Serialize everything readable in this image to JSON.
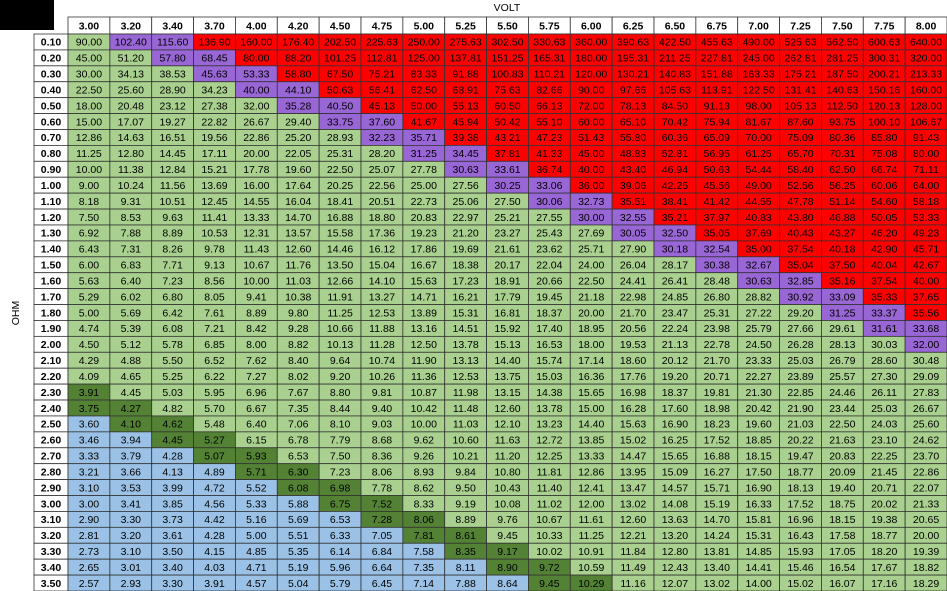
{
  "title": "VOLT",
  "row_title": "OHM",
  "columns": [
    "3.00",
    "3.20",
    "3.40",
    "3.70",
    "4.00",
    "4.20",
    "4.50",
    "4.75",
    "5.00",
    "5.25",
    "5.50",
    "5.75",
    "6.00",
    "6.25",
    "6.50",
    "6.75",
    "7.00",
    "7.25",
    "7.50",
    "7.75",
    "8.00"
  ],
  "palette": {
    "G": "#a9d08e",
    "P": "#9966d6",
    "R": "#ff0000",
    "D": "#548235",
    "B": "#9bc2e6"
  },
  "rows": [
    {
      "label": "0.10",
      "fill": "GPPRRRRRRRRRRRRRRRRRR",
      "cells": [
        "90.00",
        "102.40",
        "115.60",
        "136.90",
        "160.00",
        "176.40",
        "202.50",
        "225.63",
        "250.00",
        "275.63",
        "302.50",
        "330.63",
        "360.00",
        "390.63",
        "422.50",
        "455.63",
        "490.00",
        "525.63",
        "562.50",
        "600.63",
        "640.00"
      ]
    },
    {
      "label": "0.20",
      "fill": "GGPPRRRRRRRRRRRRRRRRR",
      "cells": [
        "45.00",
        "51.20",
        "57.80",
        "68.45",
        "80.00",
        "88.20",
        "101.25",
        "112.81",
        "125.00",
        "137.81",
        "151.25",
        "165.31",
        "180.00",
        "195.31",
        "211.25",
        "227.81",
        "245.00",
        "262.81",
        "281.25",
        "300.31",
        "320.00"
      ]
    },
    {
      "label": "0.30",
      "fill": "GGGPPRRRRRRRRRRRRRRRR",
      "cells": [
        "30.00",
        "34.13",
        "38.53",
        "45.63",
        "53.33",
        "58.80",
        "67.50",
        "75.21",
        "83.33",
        "91.88",
        "100.83",
        "110.21",
        "120.00",
        "130.21",
        "140.83",
        "151.88",
        "163.33",
        "175.21",
        "187.50",
        "200.21",
        "213.33"
      ]
    },
    {
      "label": "0.40",
      "fill": "GGGGPPRRRRRRRRRRRRRRR",
      "cells": [
        "22.50",
        "25.60",
        "28.90",
        "34.23",
        "40.00",
        "44.10",
        "50.63",
        "56.41",
        "62.50",
        "68.91",
        "75.63",
        "82.66",
        "90.00",
        "97.66",
        "105.63",
        "113.91",
        "122.50",
        "131.41",
        "140.63",
        "150.16",
        "160.00"
      ]
    },
    {
      "label": "0.50",
      "fill": "GGGGGPPRRRRRRRRRRRRRR",
      "cells": [
        "18.00",
        "20.48",
        "23.12",
        "27.38",
        "32.00",
        "35.28",
        "40.50",
        "45.13",
        "50.00",
        "55.13",
        "60.50",
        "66.13",
        "72.00",
        "78.13",
        "84.50",
        "91.13",
        "98.00",
        "105.13",
        "112.50",
        "120.13",
        "128.00"
      ]
    },
    {
      "label": "0.60",
      "fill": "GGGGGGPPRRRRRRRRRRRRR",
      "cells": [
        "15.00",
        "17.07",
        "19.27",
        "22.82",
        "26.67",
        "29.40",
        "33.75",
        "37.60",
        "41.67",
        "45.94",
        "50.42",
        "55.10",
        "60.00",
        "65.10",
        "70.42",
        "75.94",
        "81.67",
        "87.60",
        "93.75",
        "100.10",
        "106.67"
      ]
    },
    {
      "label": "0.70",
      "fill": "GGGGGGGPPRRRRRRRRRRRR",
      "cells": [
        "12.86",
        "14.63",
        "16.51",
        "19.56",
        "22.86",
        "25.20",
        "28.93",
        "32.23",
        "35.71",
        "39.38",
        "43.21",
        "47.23",
        "51.43",
        "55.80",
        "60.36",
        "65.09",
        "70.00",
        "75.09",
        "80.36",
        "85.80",
        "91.43"
      ]
    },
    {
      "label": "0.80",
      "fill": "GGGGGGGGPPRRRRRRRRRRR",
      "cells": [
        "11.25",
        "12.80",
        "14.45",
        "17.11",
        "20.00",
        "22.05",
        "25.31",
        "28.20",
        "31.25",
        "34.45",
        "37.81",
        "41.33",
        "45.00",
        "48.83",
        "52.81",
        "56.95",
        "61.25",
        "65.70",
        "70.31",
        "75.08",
        "80.00"
      ]
    },
    {
      "label": "0.90",
      "fill": "GGGGGGGGGPPRRRRRRRRRR",
      "cells": [
        "10.00",
        "11.38",
        "12.84",
        "15.21",
        "17.78",
        "19.60",
        "22.50",
        "25.07",
        "27.78",
        "30.63",
        "33.61",
        "36.74",
        "40.00",
        "43.40",
        "46.94",
        "50.63",
        "54.44",
        "58.40",
        "62.50",
        "66.74",
        "71.11"
      ]
    },
    {
      "label": "1.00",
      "fill": "GGGGGGGGGGPPRRRRRRRRR",
      "cells": [
        "9.00",
        "10.24",
        "11.56",
        "13.69",
        "16.00",
        "17.64",
        "20.25",
        "22.56",
        "25.00",
        "27.56",
        "30.25",
        "33.06",
        "36.00",
        "39.06",
        "42.25",
        "45.56",
        "49.00",
        "52.56",
        "56.25",
        "60.06",
        "64.00"
      ]
    },
    {
      "label": "1.10",
      "fill": "GGGGGGGGGGGPPRRRRRRRR",
      "cells": [
        "8.18",
        "9.31",
        "10.51",
        "12.45",
        "14.55",
        "16.04",
        "18.41",
        "20.51",
        "22.73",
        "25.06",
        "27.50",
        "30.06",
        "32.73",
        "35.51",
        "38.41",
        "41.42",
        "44.55",
        "47.78",
        "51.14",
        "54.60",
        "58.18"
      ]
    },
    {
      "label": "1.20",
      "fill": "GGGGGGGGGGGGPPRRRRRRR",
      "cells": [
        "7.50",
        "8.53",
        "9.63",
        "11.41",
        "13.33",
        "14.70",
        "16.88",
        "18.80",
        "20.83",
        "22.97",
        "25.21",
        "27.55",
        "30.00",
        "32.55",
        "35.21",
        "37.97",
        "40.83",
        "43.80",
        "46.88",
        "50.05",
        "53.33"
      ]
    },
    {
      "label": "1.30",
      "fill": "GGGGGGGGGGGGGPPRRRRRR",
      "cells": [
        "6.92",
        "7.88",
        "8.89",
        "10.53",
        "12.31",
        "13.57",
        "15.58",
        "17.36",
        "19.23",
        "21.20",
        "23.27",
        "25.43",
        "27.69",
        "30.05",
        "32.50",
        "35.05",
        "37.69",
        "40.43",
        "43.27",
        "46.20",
        "49.23"
      ]
    },
    {
      "label": "1.40",
      "fill": "GGGGGGGGGGGGGGPPRRRRR",
      "cells": [
        "6.43",
        "7.31",
        "8.26",
        "9.78",
        "11.43",
        "12.60",
        "14.46",
        "16.12",
        "17.86",
        "19.69",
        "21.61",
        "23.62",
        "25.71",
        "27.90",
        "30.18",
        "32.54",
        "35.00",
        "37.54",
        "40.18",
        "42.90",
        "45.71"
      ]
    },
    {
      "label": "1.50",
      "fill": "GGGGGGGGGGGGGGGPPRRRR",
      "cells": [
        "6.00",
        "6.83",
        "7.71",
        "9.13",
        "10.67",
        "11.76",
        "13.50",
        "15.04",
        "16.67",
        "18.38",
        "20.17",
        "22.04",
        "24.00",
        "26.04",
        "28.17",
        "30.38",
        "32.67",
        "35.04",
        "37.50",
        "40.04",
        "42.67"
      ]
    },
    {
      "label": "1.60",
      "fill": "GGGGGGGGGGGGGGGGPPRRR",
      "cells": [
        "5.63",
        "6.40",
        "7.23",
        "8.56",
        "10.00",
        "11.03",
        "12.66",
        "14.10",
        "15.63",
        "17.23",
        "18.91",
        "20.66",
        "22.50",
        "24.41",
        "26.41",
        "28.48",
        "30.63",
        "32.85",
        "35.16",
        "37.54",
        "40.00"
      ]
    },
    {
      "label": "1.70",
      "fill": "GGGGGGGGGGGGGGGGGPPRR",
      "cells": [
        "5.29",
        "6.02",
        "6.80",
        "8.05",
        "9.41",
        "10.38",
        "11.91",
        "13.27",
        "14.71",
        "16.21",
        "17.79",
        "19.45",
        "21.18",
        "22.98",
        "24.85",
        "26.80",
        "28.82",
        "30.92",
        "33.09",
        "35.33",
        "37.65"
      ]
    },
    {
      "label": "1.80",
      "fill": "GGGGGGGGGGGGGGGGGGPPR",
      "cells": [
        "5.00",
        "5.69",
        "6.42",
        "7.61",
        "8.89",
        "9.80",
        "11.25",
        "12.53",
        "13.89",
        "15.31",
        "16.81",
        "18.37",
        "20.00",
        "21.70",
        "23.47",
        "25.31",
        "27.22",
        "29.20",
        "31.25",
        "33.37",
        "35.56"
      ]
    },
    {
      "label": "1.90",
      "fill": "GGGGGGGGGGGGGGGGGGGPP",
      "cells": [
        "4.74",
        "5.39",
        "6.08",
        "7.21",
        "8.42",
        "9.28",
        "10.66",
        "11.88",
        "13.16",
        "14.51",
        "15.92",
        "17.40",
        "18.95",
        "20.56",
        "22.24",
        "23.98",
        "25.79",
        "27.66",
        "29.61",
        "31.61",
        "33.68"
      ]
    },
    {
      "label": "2.00",
      "fill": "GGGGGGGGGGGGGGGGGGGGP",
      "cells": [
        "4.50",
        "5.12",
        "5.78",
        "6.85",
        "8.00",
        "8.82",
        "10.13",
        "11.28",
        "12.50",
        "13.78",
        "15.13",
        "16.53",
        "18.00",
        "19.53",
        "21.13",
        "22.78",
        "24.50",
        "26.28",
        "28.13",
        "30.03",
        "32.00"
      ]
    },
    {
      "label": "2.10",
      "fill": "GGGGGGGGGGGGGGGGGGGGG",
      "cells": [
        "4.29",
        "4.88",
        "5.50",
        "6.52",
        "7.62",
        "8.40",
        "9.64",
        "10.74",
        "11.90",
        "13.13",
        "14.40",
        "15.74",
        "17.14",
        "18.60",
        "20.12",
        "21.70",
        "23.33",
        "25.03",
        "26.79",
        "28.60",
        "30.48"
      ]
    },
    {
      "label": "2.20",
      "fill": "GGGGGGGGGGGGGGGGGGGGG",
      "cells": [
        "4.09",
        "4.65",
        "5.25",
        "6.22",
        "7.27",
        "8.02",
        "9.20",
        "10.26",
        "11.36",
        "12.53",
        "13.75",
        "15.03",
        "16.36",
        "17.76",
        "19.20",
        "20.71",
        "22.27",
        "23.89",
        "25.57",
        "27.30",
        "29.09"
      ]
    },
    {
      "label": "2.30",
      "fill": "DGGGGGGGGGGGGGGGGGGGG",
      "cells": [
        "3.91",
        "4.45",
        "5.03",
        "5.95",
        "6.96",
        "7.67",
        "8.80",
        "9.81",
        "10.87",
        "11.98",
        "13.15",
        "14.38",
        "15.65",
        "16.98",
        "18.37",
        "19.81",
        "21.30",
        "22.85",
        "24.46",
        "26.11",
        "27.83"
      ]
    },
    {
      "label": "2.40",
      "fill": "DDGGGGGGGGGGGGGGGGGGG",
      "cells": [
        "3.75",
        "4.27",
        "4.82",
        "5.70",
        "6.67",
        "7.35",
        "8.44",
        "9.40",
        "10.42",
        "11.48",
        "12.60",
        "13.78",
        "15.00",
        "16.28",
        "17.60",
        "18.98",
        "20.42",
        "21.90",
        "23.44",
        "25.03",
        "26.67"
      ]
    },
    {
      "label": "2.50",
      "fill": "BDDGGGGGGGGGGGGGGGGGG",
      "cells": [
        "3.60",
        "4.10",
        "4.62",
        "5.48",
        "6.40",
        "7.06",
        "8.10",
        "9.03",
        "10.00",
        "11.03",
        "12.10",
        "13.23",
        "14.40",
        "15.63",
        "16.90",
        "18.23",
        "19.60",
        "21.03",
        "22.50",
        "24.03",
        "25.60"
      ]
    },
    {
      "label": "2.60",
      "fill": "BBDDGGGGGGGGGGGGGGGGG",
      "cells": [
        "3.46",
        "3.94",
        "4.45",
        "5.27",
        "6.15",
        "6.78",
        "7.79",
        "8.68",
        "9.62",
        "10.60",
        "11.63",
        "12.72",
        "13.85",
        "15.02",
        "16.25",
        "17.52",
        "18.85",
        "20.22",
        "21.63",
        "23.10",
        "24.62"
      ]
    },
    {
      "label": "2.70",
      "fill": "BBBDDGGGGGGGGGGGGGGGG",
      "cells": [
        "3.33",
        "3.79",
        "4.28",
        "5.07",
        "5.93",
        "6.53",
        "7.50",
        "8.36",
        "9.26",
        "10.21",
        "11.20",
        "12.25",
        "13.33",
        "14.47",
        "15.65",
        "16.88",
        "18.15",
        "19.47",
        "20.83",
        "22.25",
        "23.70"
      ]
    },
    {
      "label": "2.80",
      "fill": "BBBBDDGGGGGGGGGGGGGGG",
      "cells": [
        "3.21",
        "3.66",
        "4.13",
        "4.89",
        "5.71",
        "6.30",
        "7.23",
        "8.06",
        "8.93",
        "9.84",
        "10.80",
        "11.81",
        "12.86",
        "13.95",
        "15.09",
        "16.27",
        "17.50",
        "18.77",
        "20.09",
        "21.45",
        "22.86"
      ]
    },
    {
      "label": "2.90",
      "fill": "BBBBBDDGGGGGGGGGGGGGG",
      "cells": [
        "3.10",
        "3.53",
        "3.99",
        "4.72",
        "5.52",
        "6.08",
        "6.98",
        "7.78",
        "8.62",
        "9.50",
        "10.43",
        "11.40",
        "12.41",
        "13.47",
        "14.57",
        "15.71",
        "16.90",
        "18.13",
        "19.40",
        "20.71",
        "22.07"
      ]
    },
    {
      "label": "3.00",
      "fill": "BBBBBBDDGGGGGGGGGGGGG",
      "cells": [
        "3.00",
        "3.41",
        "3.85",
        "4.56",
        "5.33",
        "5.88",
        "6.75",
        "7.52",
        "8.33",
        "9.19",
        "10.08",
        "11.02",
        "12.00",
        "13.02",
        "14.08",
        "15.19",
        "16.33",
        "17.52",
        "18.75",
        "20.02",
        "21.33"
      ]
    },
    {
      "label": "3.10",
      "fill": "BBBBBBBDDGGGGGGGGGGGG",
      "cells": [
        "2.90",
        "3.30",
        "3.73",
        "4.42",
        "5.16",
        "5.69",
        "6.53",
        "7.28",
        "8.06",
        "8.89",
        "9.76",
        "10.67",
        "11.61",
        "12.60",
        "13.63",
        "14.70",
        "15.81",
        "16.96",
        "18.15",
        "19.38",
        "20.65"
      ]
    },
    {
      "label": "3.20",
      "fill": "BBBBBBBBDDGGGGGGGGGGG",
      "cells": [
        "2.81",
        "3.20",
        "3.61",
        "4.28",
        "5.00",
        "5.51",
        "6.33",
        "7.05",
        "7.81",
        "8.61",
        "9.45",
        "10.33",
        "11.25",
        "12.21",
        "13.20",
        "14.24",
        "15.31",
        "16.43",
        "17.58",
        "18.77",
        "20.00"
      ]
    },
    {
      "label": "3.30",
      "fill": "BBBBBBBBBDDGGGGGGGGGG",
      "cells": [
        "2.73",
        "3.10",
        "3.50",
        "4.15",
        "4.85",
        "5.35",
        "6.14",
        "6.84",
        "7.58",
        "8.35",
        "9.17",
        "10.02",
        "10.91",
        "11.84",
        "12.80",
        "13.81",
        "14.85",
        "15.93",
        "17.05",
        "18.20",
        "19.39"
      ]
    },
    {
      "label": "3.40",
      "fill": "BBBBBBBBBBDDGGGGGGGGG",
      "cells": [
        "2.65",
        "3.01",
        "3.40",
        "4.03",
        "4.71",
        "5.19",
        "5.96",
        "6.64",
        "7.35",
        "8.11",
        "8.90",
        "9.72",
        "10.59",
        "11.49",
        "12.43",
        "13.40",
        "14.41",
        "15.46",
        "16.54",
        "17.67",
        "18.82"
      ]
    },
    {
      "label": "3.50",
      "fill": "BBBBBBBBBBBDDGGGGGGGG",
      "cells": [
        "2.57",
        "2.93",
        "3.30",
        "3.91",
        "4.57",
        "5.04",
        "5.79",
        "6.45",
        "7.14",
        "7.88",
        "8.64",
        "9.45",
        "10.29",
        "11.16",
        "12.07",
        "13.02",
        "14.00",
        "15.02",
        "16.07",
        "17.16",
        "18.29"
      ]
    }
  ]
}
